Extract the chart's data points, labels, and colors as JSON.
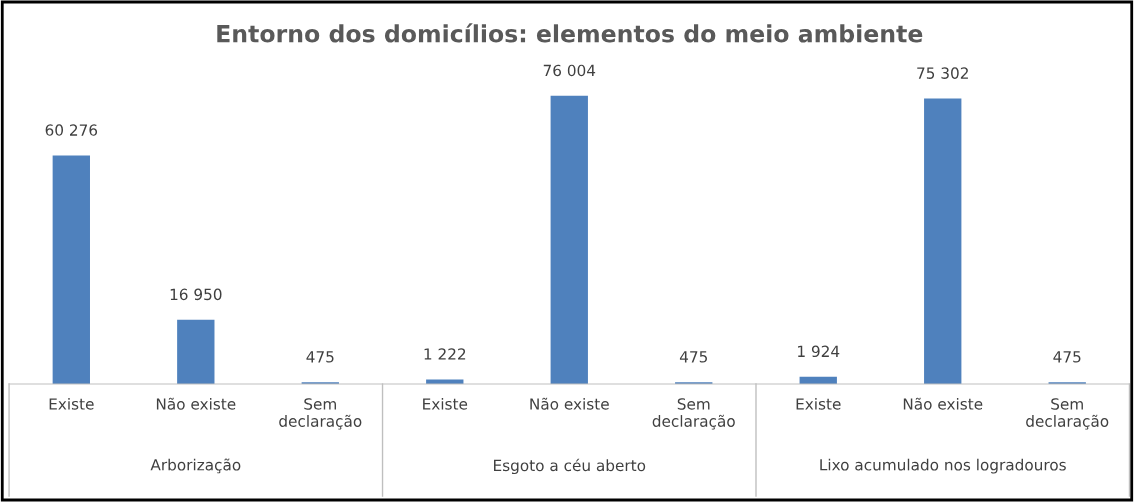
{
  "chart_data": {
    "type": "bar",
    "title": "Entorno dos domicílios: elementos do meio ambiente",
    "categories": [
      "Existe",
      "Não existe",
      "Sem declaração",
      "Existe",
      "Não existe",
      "Sem declaração",
      "Existe",
      "Não existe",
      "Sem declaração"
    ],
    "values": [
      60276,
      16950,
      475,
      1222,
      76004,
      475,
      1924,
      75302,
      475
    ],
    "value_labels": [
      "60 276",
      "16 950",
      "475",
      "1 222",
      "76 004",
      "475",
      "1 924",
      "75 302",
      "475"
    ],
    "color": "#4f81bd",
    "annotations": [
      "Arborização",
      "Esgoto a céu aberto",
      "Lixo acumulado nos logradouros"
    ],
    "grid": false
  }
}
